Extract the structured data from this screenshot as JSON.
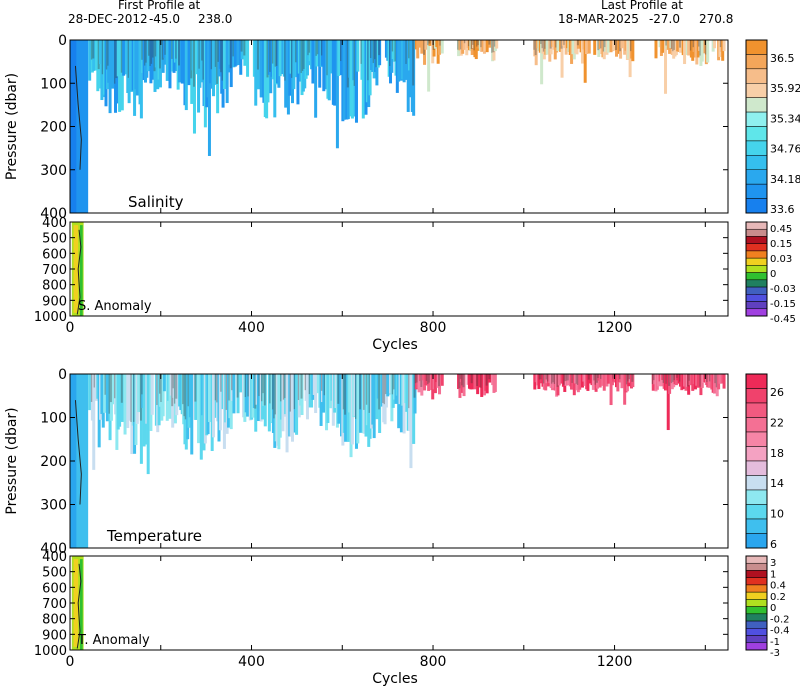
{
  "header": {
    "first_label": "First Profile at",
    "first_date": "28-DEC-2012",
    "first_lat": "-45.0",
    "first_lon": "238.0",
    "last_label": "Last Profile at",
    "last_date": "18-MAR-2025",
    "last_lat": "-27.0",
    "last_lon": "270.8"
  },
  "chart_data": [
    {
      "type": "heatmap",
      "name": "Salinity",
      "ylabel": "Pressure (dbar)",
      "xlim": [
        0,
        1450
      ],
      "ylim": [
        0,
        400
      ],
      "yticks": [
        0,
        100,
        200,
        300,
        400
      ],
      "xticks": [
        0,
        400,
        800,
        1200
      ],
      "colorbar": {
        "labels": [
          "36.5",
          "35.92",
          "35.34",
          "34.76",
          "34.18",
          "33.6"
        ],
        "colors": [
          "#f0922e",
          "#f4a65a",
          "#f6bd8a",
          "#f8cfa8",
          "#cfe8cc",
          "#8ff0ef",
          "#5fe6ea",
          "#45d4ec",
          "#35bfee",
          "#2aa8ee",
          "#1f94ef",
          "#1780ee"
        ]
      }
    },
    {
      "type": "heatmap",
      "name": "S. Anomaly",
      "xlabel": "Cycles",
      "ylim": [
        400,
        1000
      ],
      "yticks": [
        400,
        500,
        600,
        700,
        800,
        900,
        1000
      ],
      "xticks": [
        0,
        400,
        800,
        1200
      ],
      "colorbar": {
        "labels": [
          "0.45",
          "0.15",
          "0.03",
          "0",
          "-0.03",
          "-0.15",
          "-0.45"
        ],
        "colors": [
          "#e7b8b8",
          "#c98d8d",
          "#b01020",
          "#e03020",
          "#f08020",
          "#f0d020",
          "#b0e020",
          "#30c030",
          "#208060",
          "#4060c0",
          "#5050e0",
          "#6040c0",
          "#a040e0"
        ]
      }
    },
    {
      "type": "heatmap",
      "name": "Temperature",
      "ylabel": "Pressure (dbar)",
      "xlim": [
        0,
        1450
      ],
      "ylim": [
        0,
        400
      ],
      "yticks": [
        0,
        100,
        200,
        300,
        400
      ],
      "xticks": [
        0,
        400,
        800,
        1200
      ],
      "colorbar": {
        "labels": [
          "26",
          "22",
          "18",
          "14",
          "10",
          "6"
        ],
        "colors": [
          "#ee2a58",
          "#f0426c",
          "#f25a80",
          "#f47094",
          "#f685a6",
          "#f4a2c2",
          "#e4bcdc",
          "#c8def0",
          "#8ee8f0",
          "#5cd8ee",
          "#3fbfee",
          "#2aa6ee"
        ]
      }
    },
    {
      "type": "heatmap",
      "name": "T. Anomaly",
      "xlabel": "Cycles",
      "ylim": [
        400,
        1000
      ],
      "yticks": [
        400,
        500,
        600,
        700,
        800,
        900,
        1000
      ],
      "xticks": [
        0,
        400,
        800,
        1200
      ],
      "colorbar": {
        "labels": [
          "3",
          "1",
          "0.4",
          "0.2",
          "0",
          "-0.2",
          "-0.4",
          "-1",
          "-3"
        ],
        "colors": [
          "#e7b8b8",
          "#c98d8d",
          "#b01020",
          "#e03020",
          "#f08020",
          "#f0d020",
          "#b0e020",
          "#30c030",
          "#208060",
          "#4060c0",
          "#5050e0",
          "#6040c0",
          "#a040e0"
        ]
      }
    }
  ]
}
